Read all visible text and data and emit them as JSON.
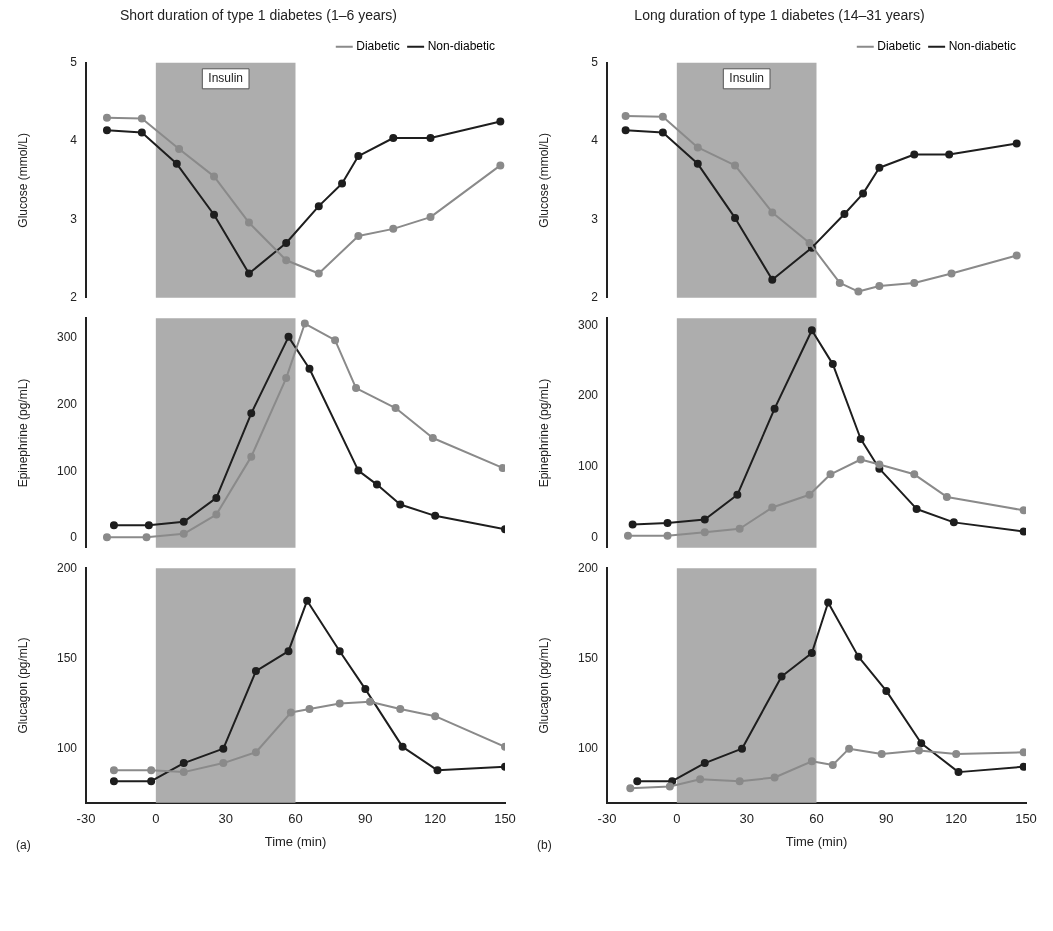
{
  "chart_data": [
    {
      "type": "line",
      "title": "Short duration of type 1 diabetes (1–6 years)",
      "legend": "top right",
      "ylabel": "Glucose (mmol/L)",
      "xlim": [
        -30,
        150
      ],
      "ylim": [
        2,
        5
      ],
      "yticks": [
        2,
        3,
        4,
        5
      ],
      "tick_labels": "y",
      "marker": "circle",
      "bands": [
        {
          "axis": "x",
          "from": 0,
          "to": 60,
          "label": "Insulin",
          "color": "#adadad"
        }
      ],
      "series": [
        {
          "name": "Diabetic",
          "color": "#8a8a8a",
          "x": [
            -21,
            -6,
            10,
            25,
            40,
            56,
            70,
            87,
            102,
            118,
            148
          ],
          "values": [
            4.3,
            4.29,
            3.9,
            3.55,
            2.96,
            2.48,
            2.31,
            2.79,
            2.88,
            3.03,
            3.69
          ]
        },
        {
          "name": "Non-diabetic",
          "color": "#1e1e1e",
          "x": [
            -21,
            -6,
            9,
            25,
            40,
            56,
            70,
            80,
            87,
            102,
            118,
            148
          ],
          "values": [
            4.14,
            4.11,
            3.71,
            3.06,
            2.31,
            2.7,
            3.17,
            3.46,
            3.81,
            4.04,
            4.04,
            4.25
          ]
        }
      ]
    },
    {
      "type": "line",
      "ylabel": "Epinephrine (pg/mL)",
      "xlim": [
        -30,
        150
      ],
      "ylim": [
        -15,
        330
      ],
      "yticks": [
        0,
        100,
        200,
        300
      ],
      "tick_labels": "y",
      "marker": "circle",
      "bands": [
        {
          "axis": "x",
          "from": 0,
          "to": 60,
          "color": "#adadad"
        }
      ],
      "series": [
        {
          "color": "#8a8a8a",
          "x": [
            -21,
            -4,
            12,
            26,
            41,
            56,
            64,
            77,
            86,
            103,
            119,
            149
          ],
          "values": [
            1,
            1,
            6,
            35,
            122,
            240,
            322,
            297,
            225,
            195,
            150,
            105
          ]
        },
        {
          "color": "#1e1e1e",
          "x": [
            -18,
            -3,
            12,
            26,
            41,
            57,
            66,
            87,
            95,
            105,
            120,
            150
          ],
          "values": [
            19,
            19,
            24,
            60,
            187,
            302,
            254,
            101,
            80,
            50,
            33,
            13
          ]
        }
      ]
    },
    {
      "type": "line",
      "ylabel": "Glucagon (pg/mL)",
      "xlabel": "Time (min)",
      "xlim": [
        -30,
        150
      ],
      "xticks": [
        -30,
        0,
        30,
        60,
        90,
        120,
        150
      ],
      "ylim": [
        70,
        200
      ],
      "yticks": [
        100,
        150,
        200
      ],
      "marker": "circle",
      "annotations": [
        "(a)"
      ],
      "bands": [
        {
          "axis": "x",
          "from": 0,
          "to": 60,
          "color": "#adadad"
        }
      ],
      "series": [
        {
          "color": "#8a8a8a",
          "x": [
            -18,
            -2,
            12,
            29,
            43,
            58,
            66,
            79,
            92,
            105,
            120,
            150
          ],
          "values": [
            88,
            88,
            87,
            92,
            98,
            120,
            122,
            125,
            126,
            122,
            118,
            101
          ]
        },
        {
          "color": "#1e1e1e",
          "x": [
            -18,
            -2,
            12,
            29,
            43,
            57,
            65,
            79,
            90,
            106,
            121,
            150
          ],
          "values": [
            82,
            82,
            92,
            100,
            143,
            154,
            182,
            154,
            133,
            101,
            88,
            90
          ]
        }
      ]
    },
    {
      "type": "line",
      "title": "Long duration of type 1 diabetes (14–31 years)",
      "legend": "top right",
      "ylabel": "Glucose (mmol/L)",
      "xlim": [
        -30,
        150
      ],
      "ylim": [
        2,
        5
      ],
      "yticks": [
        2,
        3,
        4,
        5
      ],
      "tick_labels": "y",
      "marker": "circle",
      "bands": [
        {
          "axis": "x",
          "from": 0,
          "to": 60,
          "label": "Insulin",
          "color": "#adadad"
        }
      ],
      "series": [
        {
          "name": "Diabetic",
          "color": "#8a8a8a",
          "x": [
            -22,
            -6,
            9,
            25,
            41,
            57,
            70,
            78,
            87,
            102,
            118,
            146
          ],
          "values": [
            4.32,
            4.31,
            3.92,
            3.69,
            3.09,
            2.7,
            2.19,
            2.08,
            2.15,
            2.19,
            2.31,
            2.54
          ]
        },
        {
          "name": "Non-diabetic",
          "color": "#1e1e1e",
          "x": [
            -22,
            -6,
            9,
            25,
            41,
            58,
            72,
            80,
            87,
            102,
            117,
            146
          ],
          "values": [
            4.14,
            4.11,
            3.71,
            3.02,
            2.23,
            2.64,
            3.07,
            3.33,
            3.66,
            3.83,
            3.83,
            3.97
          ]
        }
      ]
    },
    {
      "type": "line",
      "ylabel": "Epinephrine (pg/mL)",
      "xlim": [
        -30,
        150
      ],
      "ylim": [
        -15,
        310
      ],
      "yticks": [
        0,
        100,
        200,
        300
      ],
      "tick_labels": "y",
      "marker": "circle",
      "bands": [
        {
          "axis": "x",
          "from": 0,
          "to": 60,
          "color": "#adadad"
        }
      ],
      "series": [
        {
          "color": "#8a8a8a",
          "x": [
            -21,
            -4,
            12,
            27,
            41,
            57,
            66,
            79,
            87,
            102,
            116,
            149
          ],
          "values": [
            2,
            2,
            7,
            12,
            42,
            60,
            89,
            110,
            103,
            89,
            57,
            38
          ]
        },
        {
          "color": "#1e1e1e",
          "x": [
            -19,
            -4,
            12,
            26,
            42,
            58,
            67,
            79,
            87,
            103,
            119,
            149
          ],
          "values": [
            18,
            20,
            25,
            60,
            182,
            293,
            245,
            139,
            97,
            40,
            21,
            8
          ]
        }
      ]
    },
    {
      "type": "line",
      "ylabel": "Glucagon (pg/mL)",
      "xlabel": "Time (min)",
      "xlim": [
        -30,
        150
      ],
      "xticks": [
        -30,
        0,
        30,
        60,
        90,
        120,
        150
      ],
      "ylim": [
        70,
        200
      ],
      "yticks": [
        100,
        150,
        200
      ],
      "marker": "circle",
      "annotations": [
        "(b)"
      ],
      "bands": [
        {
          "axis": "x",
          "from": 0,
          "to": 60,
          "color": "#adadad"
        }
      ],
      "series": [
        {
          "color": "#8a8a8a",
          "x": [
            -20,
            -3,
            10,
            27,
            42,
            58,
            67,
            74,
            88,
            104,
            120,
            149
          ],
          "values": [
            78,
            79,
            83,
            82,
            84,
            93,
            91,
            100,
            97,
            99,
            97,
            98
          ]
        },
        {
          "color": "#1e1e1e",
          "x": [
            -17,
            -2,
            12,
            28,
            45,
            58,
            65,
            78,
            90,
            105,
            121,
            149
          ],
          "values": [
            82,
            82,
            92,
            100,
            140,
            153,
            181,
            151,
            132,
            103,
            87,
            90
          ]
        }
      ]
    }
  ]
}
